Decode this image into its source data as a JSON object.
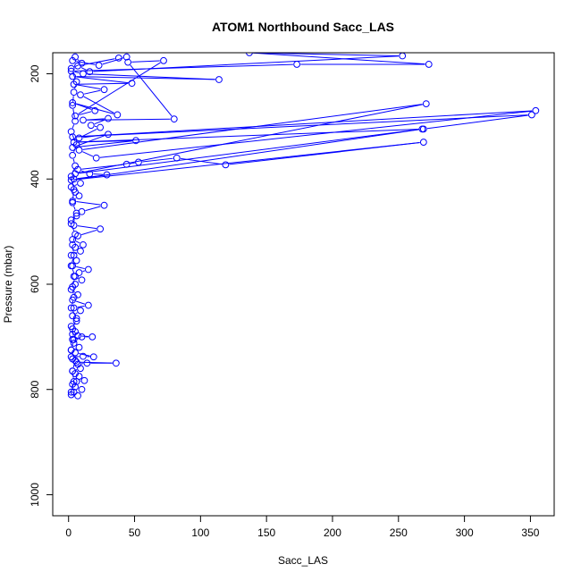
{
  "chart_data": {
    "type": "line",
    "title": "ATOM1 Northbound Sacc_LAS",
    "xlabel": "Sacc_LAS",
    "ylabel": "Pressure (mbar)",
    "xlim": [
      -12,
      368
    ],
    "ylim": [
      1040,
      160
    ],
    "y_reversed": true,
    "x_ticks": [
      0,
      50,
      100,
      150,
      200,
      250,
      300,
      350
    ],
    "y_ticks": [
      200,
      400,
      600,
      800,
      1000
    ],
    "grid": false,
    "legend": "none",
    "marker": "open-circle",
    "series": [
      {
        "color": "#0000ff",
        "points": [
          [
            2,
            810
          ],
          [
            4,
            805
          ],
          [
            7,
            812
          ],
          [
            10,
            800
          ],
          [
            5,
            795
          ],
          [
            3,
            790
          ],
          [
            6,
            785
          ],
          [
            12,
            783
          ],
          [
            8,
            775
          ],
          [
            5,
            770
          ],
          [
            3,
            765
          ],
          [
            9,
            760
          ],
          [
            7,
            752
          ],
          [
            14,
            750
          ],
          [
            36,
            750
          ],
          [
            6,
            748
          ],
          [
            3,
            742
          ],
          [
            2,
            738
          ],
          [
            11,
            737
          ],
          [
            19,
            738
          ],
          [
            5,
            730
          ],
          [
            2,
            725
          ],
          [
            8,
            720
          ],
          [
            4,
            712
          ],
          [
            3,
            705
          ],
          [
            10,
            700
          ],
          [
            18,
            700
          ],
          [
            7,
            698
          ],
          [
            3,
            695
          ],
          [
            5,
            690
          ],
          [
            2,
            680
          ],
          [
            6,
            670
          ],
          [
            3,
            660
          ],
          [
            9,
            650
          ],
          [
            4,
            645
          ],
          [
            15,
            640
          ],
          [
            3,
            630
          ],
          [
            7,
            620
          ],
          [
            2,
            610
          ],
          [
            5,
            600
          ],
          [
            10,
            592
          ],
          [
            4,
            585
          ],
          [
            8,
            578
          ],
          [
            15,
            572
          ],
          [
            3,
            565
          ],
          [
            6,
            555
          ],
          [
            2,
            545
          ],
          [
            9,
            537
          ],
          [
            5,
            530
          ],
          [
            11,
            525
          ],
          [
            3,
            515
          ],
          [
            7,
            508
          ],
          [
            24,
            495
          ],
          [
            4,
            488
          ],
          [
            2,
            478
          ],
          [
            6,
            470
          ],
          [
            10,
            462
          ],
          [
            27,
            450
          ],
          [
            3,
            442
          ],
          [
            8,
            432
          ],
          [
            5,
            425
          ],
          [
            2,
            415
          ],
          [
            9,
            408
          ],
          [
            4,
            400
          ],
          [
            29,
            392
          ],
          [
            16,
            390
          ],
          [
            7,
            382
          ],
          [
            44,
            372
          ],
          [
            53,
            368
          ],
          [
            82,
            360
          ],
          [
            119,
            373
          ],
          [
            269,
            330
          ],
          [
            2,
            402
          ],
          [
            268,
            305
          ],
          [
            5,
            390
          ],
          [
            271,
            257
          ],
          [
            8,
            345
          ],
          [
            21,
            360
          ],
          [
            354,
            270
          ],
          [
            3,
            320
          ],
          [
            351,
            278
          ],
          [
            269,
            305
          ],
          [
            4,
            330
          ],
          [
            51,
            327
          ],
          [
            3,
            340
          ],
          [
            30,
            315
          ],
          [
            8,
            322
          ],
          [
            24,
            302
          ],
          [
            17,
            298
          ],
          [
            30,
            285
          ],
          [
            11,
            288
          ],
          [
            80,
            286
          ],
          [
            45,
            178
          ],
          [
            72,
            175
          ],
          [
            5,
            280
          ],
          [
            20,
            270
          ],
          [
            3,
            255
          ],
          [
            37,
            278
          ],
          [
            9,
            240
          ],
          [
            27,
            230
          ],
          [
            4,
            220
          ],
          [
            48,
            218
          ],
          [
            3,
            205
          ],
          [
            114,
            211
          ],
          [
            11,
            200
          ],
          [
            2,
            195
          ],
          [
            173,
            182
          ],
          [
            273,
            182
          ],
          [
            137,
            160
          ],
          [
            253,
            166
          ],
          [
            16,
            196
          ],
          [
            7,
            185
          ],
          [
            38,
            170
          ],
          [
            44,
            168
          ],
          [
            23,
            184
          ],
          [
            3,
            175
          ],
          [
            5,
            168
          ],
          [
            10,
            180
          ],
          [
            2,
            190
          ],
          [
            6,
            215
          ],
          [
            4,
            235
          ],
          [
            3,
            260
          ],
          [
            5,
            290
          ],
          [
            2,
            310
          ],
          [
            6,
            335
          ],
          [
            3,
            355
          ],
          [
            5,
            375
          ],
          [
            2,
            395
          ],
          [
            4,
            420
          ],
          [
            3,
            445
          ],
          [
            6,
            465
          ],
          [
            2,
            485
          ],
          [
            5,
            505
          ],
          [
            3,
            525
          ],
          [
            4,
            545
          ],
          [
            2,
            565
          ],
          [
            5,
            585
          ],
          [
            3,
            605
          ],
          [
            4,
            625
          ],
          [
            2,
            645
          ],
          [
            6,
            665
          ],
          [
            3,
            685
          ],
          [
            4,
            705
          ],
          [
            2,
            725
          ],
          [
            5,
            745
          ],
          [
            3,
            765
          ],
          [
            4,
            785
          ],
          [
            2,
            805
          ]
        ]
      }
    ]
  }
}
